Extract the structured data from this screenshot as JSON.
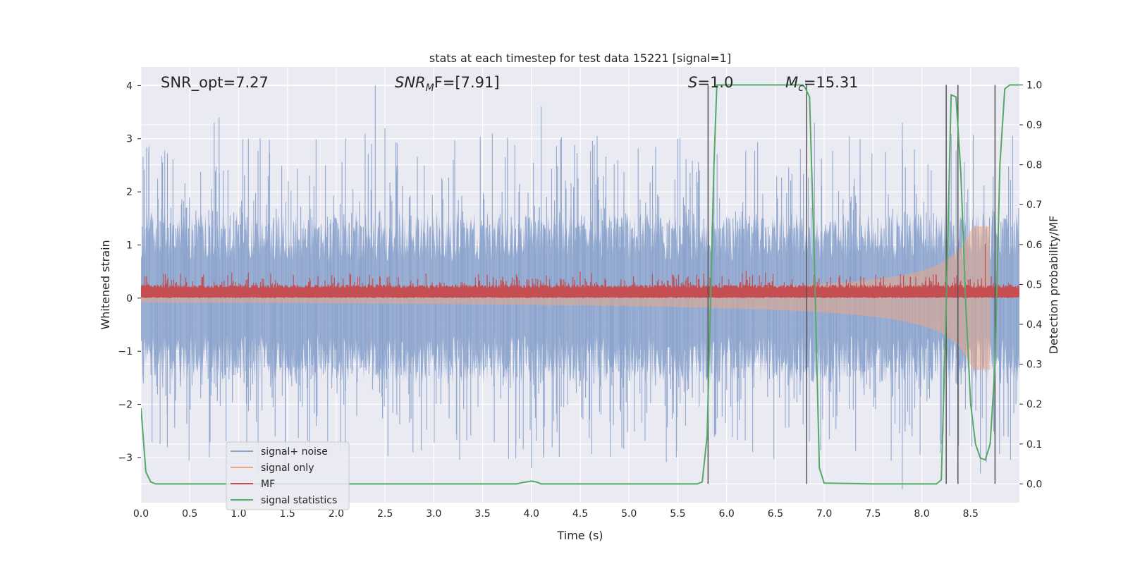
{
  "chart_data": {
    "type": "line",
    "title": "stats at each timestep for test data 15221 [signal=1]",
    "xlabel": "Time (s)",
    "ylabel": "Whitened strain",
    "ylabel_right": "Detection probability/MF",
    "xlim": [
      0.0,
      9.0
    ],
    "ylim": [
      -3.85,
      4.35
    ],
    "ylim_right": [
      -0.047,
      1.045
    ],
    "xticks": [
      "0.0",
      "0.5",
      "1.0",
      "1.5",
      "2.0",
      "2.5",
      "3.0",
      "3.5",
      "4.0",
      "4.5",
      "5.0",
      "5.5",
      "6.0",
      "6.5",
      "7.0",
      "7.5",
      "8.0",
      "8.5"
    ],
    "xtick_values": [
      0.0,
      0.5,
      1.0,
      1.5,
      2.0,
      2.5,
      3.0,
      3.5,
      4.0,
      4.5,
      5.0,
      5.5,
      6.0,
      6.5,
      7.0,
      7.5,
      8.0,
      8.5
    ],
    "yticks": [
      "−3",
      "−2",
      "−1",
      "0",
      "1",
      "2",
      "3",
      "4"
    ],
    "ytick_values": [
      -3,
      -2,
      -1,
      0,
      1,
      2,
      3,
      4
    ],
    "yticks_right": [
      "0.0",
      "0.1",
      "0.2",
      "0.3",
      "0.4",
      "0.5",
      "0.6",
      "0.7",
      "0.8",
      "0.9",
      "1.0"
    ],
    "ytick_right_values": [
      0.0,
      0.1,
      0.2,
      0.3,
      0.4,
      0.5,
      0.6,
      0.7,
      0.8,
      0.9,
      1.0
    ],
    "grid": true,
    "legend_placement": "lower-left",
    "annotations": {
      "snr_opt": "SNR_opt=7.27",
      "snr_mf_label": "SNR",
      "snr_mf_sub": "M",
      "snr_mf_value": "F=[7.91]",
      "s_label": "S",
      "s_value": "=1.0",
      "mc_label": "M",
      "mc_sub": "c",
      "mc_value": "=15.31"
    },
    "vlines": [
      5.81,
      6.82,
      8.25,
      8.37,
      8.75
    ],
    "series": [
      {
        "name": "signal+ noise",
        "color": "#8ba3cc",
        "axis": "left",
        "style": "dense-noise",
        "amplitude_core": 1.25,
        "spike_peaks": [
          {
            "x": 0.75,
            "y": 3.3
          },
          {
            "x": 0.8,
            "y": 3.4
          },
          {
            "x": 1.1,
            "y": 3.0
          },
          {
            "x": 2.4,
            "y": 4.0
          },
          {
            "x": 2.5,
            "y": 3.2
          },
          {
            "x": 3.6,
            "y": 3.1
          },
          {
            "x": 4.1,
            "y": 3.6
          },
          {
            "x": 5.5,
            "y": 3.0
          },
          {
            "x": 6.9,
            "y": 3.3
          },
          {
            "x": 7.8,
            "y": 3.3
          },
          {
            "x": 0.7,
            "y": -3.0
          },
          {
            "x": 1.2,
            "y": -3.3
          },
          {
            "x": 4.0,
            "y": -3.2
          },
          {
            "x": 7.8,
            "y": -3.6
          },
          {
            "x": 8.6,
            "y": -3.3
          }
        ]
      },
      {
        "name": "signal only",
        "color": "#e9a888",
        "axis": "left",
        "style": "chirp",
        "x_start": 0.0,
        "x_end": 8.7,
        "peak_amplitude": 1.35
      },
      {
        "name": "MF",
        "color": "#c44e52",
        "axis": "left",
        "style": "dense-band",
        "y_low": 0.0,
        "y_high": 0.22,
        "spikes": [
          {
            "x": 0.25,
            "y": 0.45
          },
          {
            "x": 1.1,
            "y": 0.48
          },
          {
            "x": 4.5,
            "y": 0.5
          },
          {
            "x": 6.2,
            "y": 0.52
          },
          {
            "x": 8.65,
            "y": 1.02
          }
        ]
      },
      {
        "name": "signal statistics",
        "color": "#55a868",
        "axis": "right",
        "style": "line",
        "x": [
          0.0,
          0.05,
          0.1,
          0.15,
          0.2,
          1.0,
          2.0,
          3.0,
          3.85,
          3.9,
          4.0,
          4.05,
          4.1,
          5.0,
          5.7,
          5.75,
          5.8,
          5.87,
          5.9,
          6.0,
          6.78,
          6.8,
          6.85,
          6.9,
          6.95,
          7.0,
          7.5,
          8.15,
          8.2,
          8.25,
          8.3,
          8.35,
          8.4,
          8.45,
          8.5,
          8.55,
          8.6,
          8.65,
          8.7,
          8.75,
          8.8,
          8.85,
          8.9,
          9.0
        ],
        "y": [
          0.19,
          0.03,
          0.005,
          0.0,
          0.0,
          0.0,
          0.0,
          0.0,
          0.0,
          0.003,
          0.007,
          0.005,
          0.0,
          0.0,
          0.0,
          0.005,
          0.12,
          0.8,
          1.0,
          1.0,
          1.0,
          0.995,
          0.97,
          0.55,
          0.04,
          0.002,
          0.0,
          0.0,
          0.01,
          0.45,
          0.975,
          0.97,
          0.78,
          0.45,
          0.2,
          0.1,
          0.065,
          0.06,
          0.1,
          0.3,
          0.8,
          0.99,
          1.0,
          1.0
        ]
      }
    ]
  }
}
